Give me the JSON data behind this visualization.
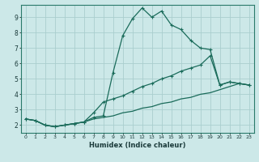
{
  "xlabel": "Humidex (Indice chaleur)",
  "ylabel": "",
  "background_color": "#cce8e8",
  "grid_color": "#aacece",
  "line_color": "#1a6b5a",
  "xlim": [
    -0.5,
    23.5
  ],
  "ylim": [
    1.5,
    9.8
  ],
  "yticks": [
    2,
    3,
    4,
    5,
    6,
    7,
    8,
    9
  ],
  "xticks": [
    0,
    1,
    2,
    3,
    4,
    5,
    6,
    7,
    8,
    9,
    10,
    11,
    12,
    13,
    14,
    15,
    16,
    17,
    18,
    19,
    20,
    21,
    22,
    23
  ],
  "series1_x": [
    0,
    1,
    2,
    3,
    4,
    5,
    6,
    7,
    8,
    9,
    10,
    11,
    12,
    13,
    14,
    15,
    16,
    17,
    18,
    19,
    20,
    21,
    22,
    23
  ],
  "series1_y": [
    2.4,
    2.3,
    2.0,
    1.9,
    2.0,
    2.1,
    2.2,
    2.5,
    2.6,
    5.4,
    7.8,
    8.9,
    9.6,
    9.0,
    9.4,
    8.5,
    8.2,
    7.5,
    7.0,
    6.9,
    4.6,
    4.8,
    4.7,
    4.6
  ],
  "series2_x": [
    0,
    1,
    2,
    3,
    4,
    5,
    6,
    7,
    8,
    9,
    10,
    11,
    12,
    13,
    14,
    15,
    16,
    17,
    18,
    19,
    20,
    21,
    22,
    23
  ],
  "series2_y": [
    2.4,
    2.3,
    2.0,
    1.9,
    2.0,
    2.1,
    2.2,
    2.8,
    3.5,
    3.7,
    3.9,
    4.2,
    4.5,
    4.7,
    5.0,
    5.2,
    5.5,
    5.7,
    5.9,
    6.5,
    4.6,
    4.8,
    4.7,
    4.6
  ],
  "series3_x": [
    0,
    1,
    2,
    3,
    4,
    5,
    6,
    7,
    8,
    9,
    10,
    11,
    12,
    13,
    14,
    15,
    16,
    17,
    18,
    19,
    20,
    21,
    22,
    23
  ],
  "series3_y": [
    2.4,
    2.3,
    2.0,
    1.9,
    2.0,
    2.1,
    2.2,
    2.4,
    2.5,
    2.6,
    2.8,
    2.9,
    3.1,
    3.2,
    3.4,
    3.5,
    3.7,
    3.8,
    4.0,
    4.1,
    4.3,
    4.5,
    4.7,
    4.6
  ]
}
